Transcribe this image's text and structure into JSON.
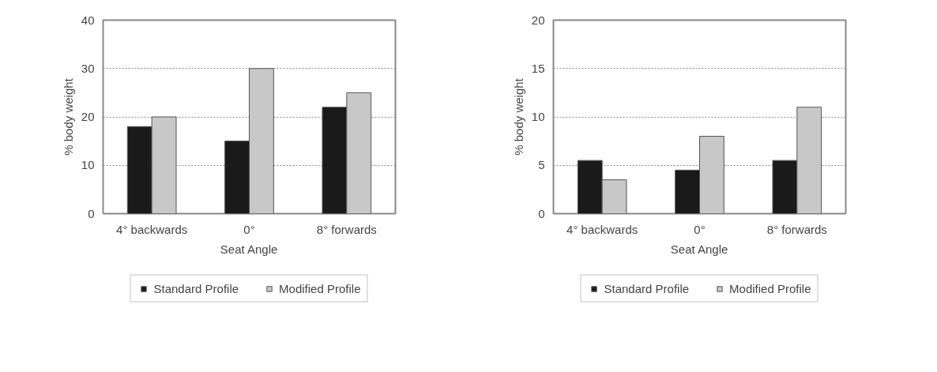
{
  "chart_data": [
    {
      "type": "bar",
      "xlabel": "Seat Angle",
      "ylabel": "% body weight",
      "categories": [
        "4° backwards",
        "0°",
        "8° forwards"
      ],
      "series": [
        {
          "name": "Standard Profile",
          "color": "#1a1a1a",
          "values": [
            18,
            15,
            22
          ]
        },
        {
          "name": "Modified Profile",
          "color": "#c8c8c8",
          "values": [
            20,
            30,
            25
          ]
        }
      ],
      "ylim": [
        0,
        40
      ],
      "yticks": [
        0,
        10,
        20,
        30,
        40
      ],
      "grid": "y",
      "legend": "bottom"
    },
    {
      "type": "bar",
      "xlabel": "Seat Angle",
      "ylabel": "% body weight",
      "categories": [
        "4° backwards",
        "0°",
        "8° forwards"
      ],
      "series": [
        {
          "name": "Standard Profile",
          "color": "#1a1a1a",
          "values": [
            5.5,
            4.5,
            5.5
          ]
        },
        {
          "name": "Modified Profile",
          "color": "#c8c8c8",
          "values": [
            3.5,
            8,
            11
          ]
        }
      ],
      "ylim": [
        0,
        20
      ],
      "yticks": [
        0,
        5,
        10,
        15,
        20
      ],
      "grid": "y",
      "legend": "bottom"
    }
  ]
}
